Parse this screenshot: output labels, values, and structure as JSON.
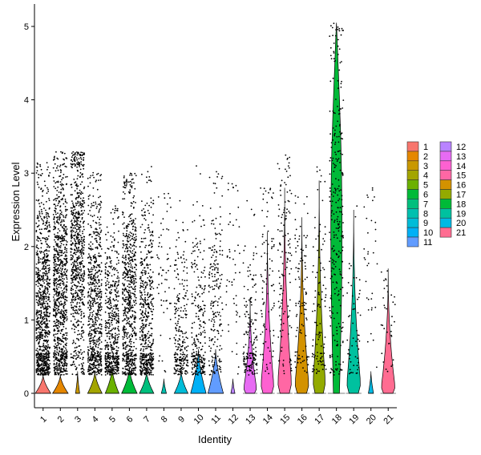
{
  "chart_data": {
    "type": "violin",
    "title": "",
    "xlabel": "Identity",
    "ylabel": "Expression Level",
    "ylim": [
      -0.22,
      5.1
    ],
    "yticks": [
      0,
      1,
      2,
      3,
      4,
      5
    ],
    "grid": false,
    "legend_position": "right",
    "categories": [
      "1",
      "2",
      "3",
      "4",
      "5",
      "6",
      "7",
      "8",
      "9",
      "10",
      "11",
      "12",
      "13",
      "14",
      "15",
      "16",
      "17",
      "18",
      "19",
      "20",
      "21"
    ],
    "colors": [
      "#F8766D",
      "#E58700",
      "#C99800",
      "#A3A500",
      "#6BB100",
      "#00BA38",
      "#00BF7D",
      "#00C0AF",
      "#00BCD8",
      "#00B0F6",
      "#619CFF",
      "#B983FF",
      "#E76BF3",
      "#FD61D1",
      "#FF67A4",
      "#D39200",
      "#93AA00",
      "#00BA38",
      "#00C19F",
      "#00B9E3",
      "#FF6C91"
    ],
    "violin_width": [
      0.45,
      0.45,
      0.12,
      0.42,
      0.4,
      0.45,
      0.42,
      0.15,
      0.4,
      0.45,
      0.45,
      0.12,
      0.42,
      0.42,
      0.45,
      0.45,
      0.4,
      0.5,
      0.45,
      0.15,
      0.45
    ],
    "violin_max": [
      0.25,
      0.25,
      0.3,
      0.3,
      0.35,
      0.35,
      0.3,
      0.2,
      0.3,
      0.6,
      0.6,
      0.2,
      1.3,
      2.2,
      2.8,
      2.4,
      2.9,
      5.05,
      2.5,
      0.3,
      1.7
    ],
    "point_max": [
      3.15,
      3.3,
      3.3,
      3.05,
      2.6,
      3.0,
      3.1,
      2.8,
      2.85,
      3.15,
      3.05,
      2.95,
      2.65,
      2.8,
      3.25,
      2.7,
      3.1,
      5.05,
      2.6,
      2.8,
      1.7
    ],
    "point_count": [
      900,
      900,
      700,
      650,
      520,
      680,
      520,
      60,
      260,
      260,
      200,
      50,
      170,
      90,
      130,
      100,
      110,
      280,
      55,
      35,
      35
    ],
    "point_center": [
      1.1,
      1.35,
      1.9,
      1.1,
      0.85,
      1.2,
      0.95,
      1.6,
      0.6,
      0.8,
      1.4,
      1.8,
      0.6,
      1.4,
      1.8,
      1.3,
      1.05,
      2.6,
      0.95,
      1.7,
      0.9
    ]
  }
}
